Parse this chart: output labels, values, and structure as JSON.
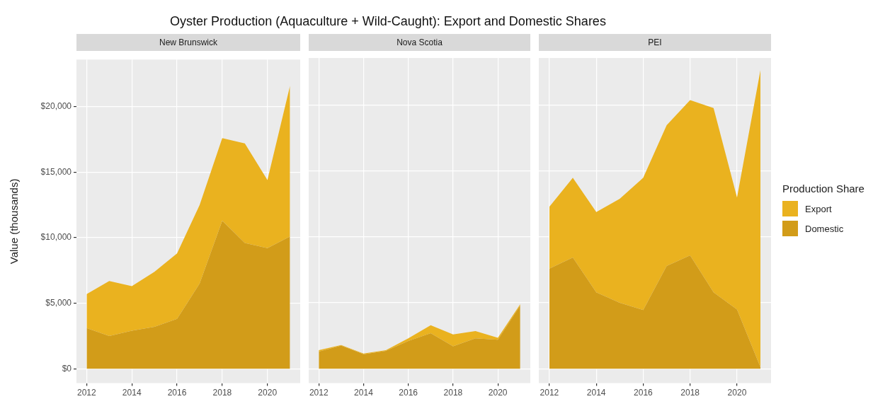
{
  "chart_data": [
    {
      "type": "area",
      "title": "Oyster Production (Aquaculture + Wild-Caught): Export and Domestic Shares",
      "subtitle": "New Brunswick",
      "ylabel": "Value (thousands)",
      "stacked": true,
      "grid": true,
      "legend": false,
      "x": [
        2012,
        2013,
        2014,
        2015,
        2016,
        2017,
        2018,
        2019,
        2020,
        2021
      ],
      "xlim": [
        2011.55,
        2021.45
      ],
      "xticks": [
        2012,
        2014,
        2016,
        2018,
        2020
      ],
      "ylim": [
        -1100,
        23600
      ],
      "yticks": [
        {
          "value": 0,
          "label": "$0"
        },
        {
          "value": 5000,
          "label": "$5,000"
        },
        {
          "value": 10000,
          "label": "$10,000"
        },
        {
          "value": 15000,
          "label": "$15,000"
        },
        {
          "value": 20000,
          "label": "$20,000"
        }
      ],
      "series": [
        {
          "color": "#d29c19",
          "values": [
            3100,
            2500,
            2900,
            3200,
            3800,
            6500,
            11300,
            9600,
            9200,
            10100
          ]
        },
        {
          "color": "#eab21f",
          "values": [
            2600,
            4200,
            3400,
            4200,
            5000,
            6000,
            6300,
            7600,
            5200,
            11500
          ]
        }
      ]
    },
    {
      "type": "area",
      "subtitle": "Nova Scotia",
      "stacked": true,
      "grid": true,
      "legend": false,
      "tick_labels": "x",
      "x": [
        2012,
        2013,
        2014,
        2015,
        2016,
        2017,
        2018,
        2019,
        2020,
        2021
      ],
      "xlim": [
        2011.55,
        2021.45
      ],
      "xticks": [
        2012,
        2014,
        2016,
        2018,
        2020
      ],
      "ylim": [
        -1100,
        23600
      ],
      "yticks": [
        0,
        5000,
        10000,
        15000,
        20000
      ],
      "series": [
        {
          "color": "#d29c19",
          "values": [
            1300,
            1750,
            1100,
            1350,
            2100,
            2700,
            1700,
            2300,
            2200,
            4800
          ]
        },
        {
          "color": "#eab21f",
          "values": [
            100,
            50,
            50,
            50,
            200,
            600,
            900,
            550,
            150,
            100
          ]
        }
      ]
    },
    {
      "type": "area",
      "subtitle": "PEI",
      "stacked": true,
      "grid": true,
      "legend": "right",
      "legend_title": "Production Share",
      "tick_labels": "x",
      "x": [
        2012,
        2013,
        2014,
        2015,
        2016,
        2017,
        2018,
        2019,
        2020,
        2021
      ],
      "xlim": [
        2011.55,
        2021.45
      ],
      "xticks": [
        2012,
        2014,
        2016,
        2018,
        2020
      ],
      "ylim": [
        -1100,
        23600
      ],
      "yticks": [
        0,
        5000,
        10000,
        15000,
        20000
      ],
      "series": [
        {
          "name": "Domestic",
          "color": "#d29c19",
          "values": [
            7600,
            8450,
            5800,
            5000,
            4450,
            7800,
            8600,
            5800,
            4500,
            100
          ]
        },
        {
          "name": "Export",
          "color": "#eab21f",
          "values": [
            4700,
            6050,
            6100,
            7900,
            10050,
            10700,
            11800,
            14000,
            8500,
            22600
          ]
        }
      ]
    }
  ]
}
